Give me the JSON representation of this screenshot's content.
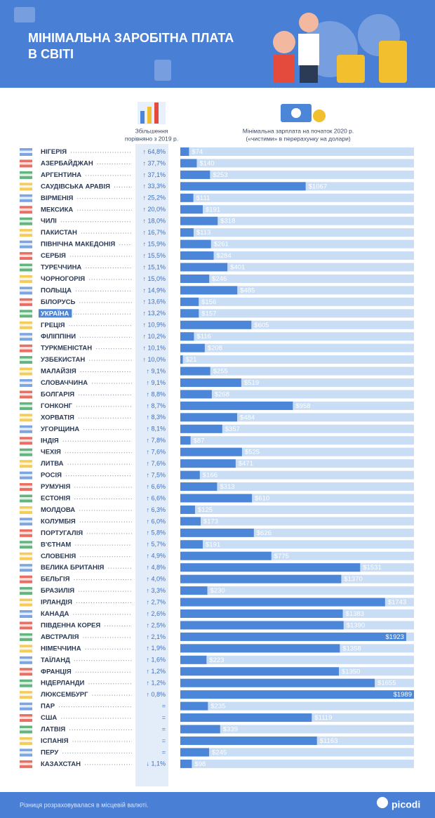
{
  "chart_data": {
    "type": "bar",
    "title": [
      "МІНІМАЛЬНА ЗАРОБІТНА ПЛАТА",
      "В СВІТІ"
    ],
    "growth_header": [
      "Збільшення",
      "порівняно з 2019 р."
    ],
    "value_header": [
      "Мінімальна зарплата на початок 2020 р.",
      "(«чистими» в перерахунку на долари)"
    ],
    "categories": [
      "НІГЕРІЯ",
      "АЗЕРБАЙДЖАН",
      "АРГЕНТИНА",
      "САУДІВСЬКА АРАВІЯ",
      "ВІРМЕНІЯ",
      "МЕКСИКА",
      "ЧИЛІ",
      "ПАКИСТАН",
      "ПІВНІЧНА МАКЕДОНІЯ",
      "СЕРБІЯ",
      "ТУРЕЧЧИНА",
      "ЧОРНОГОРІЯ",
      "ПОЛЬЩА",
      "БІЛОРУСЬ",
      "УКРАЇНА",
      "ГРЕЦІЯ",
      "ФІЛІППІНИ",
      "ТУРКМЕНІСТАН",
      "УЗБЕКИСТАН",
      "МАЛАЙЗІЯ",
      "СЛОВАЧЧИНА",
      "БОЛГАРІЯ",
      "ГОНКОНГ",
      "ХОРВАТІЯ",
      "УГОРЩИНА",
      "ІНДІЯ",
      "ЧЕХІЯ",
      "ЛИТВА",
      "РОСІЯ",
      "РУМУНІЯ",
      "ЕСТОНІЯ",
      "МОЛДОВА",
      "КОЛУМБІЯ",
      "ПОРТУГАЛІЯ",
      "В'ЄТНАМ",
      "СЛОВЕНІЯ",
      "ВЕЛИКА БРИТАНІЯ",
      "БЕЛЬГІЯ",
      "БРАЗИЛІЯ",
      "ІРЛАНДІЯ",
      "КАНАДА",
      "ПІВДЕННА КОРЕЯ",
      "АВСТРАЛІЯ",
      "НІМЕЧЧИНА",
      "ТАЇЛАНД",
      "ФРАНЦІЯ",
      "НІДЕРЛАНДИ",
      "ЛЮКСЕМБУРГ",
      "ПАР",
      "США",
      "ЛАТВІЯ",
      "ІСПАНІЯ",
      "ПЕРУ",
      "КАЗАХСТАН"
    ],
    "growth": [
      "↑ 64,8%",
      "↑ 37,7%",
      "↑ 37,1%",
      "↑ 33,3%",
      "↑ 25,2%",
      "↑ 20,0%",
      "↑ 18,0%",
      "↑ 16,7%",
      "↑ 15,9%",
      "↑ 15,5%",
      "↑ 15,1%",
      "↑ 15,0%",
      "↑ 14,9%",
      "↑ 13,6%",
      "↑ 13,2%",
      "↑ 10,9%",
      "↑ 10,2%",
      "↑ 10,1%",
      "↑ 10,0%",
      "↑ 9,1%",
      "↑ 9,1%",
      "↑ 8,8%",
      "↑ 8,7%",
      "↑ 8,3%",
      "↑ 8,1%",
      "↑ 7,8%",
      "↑ 7,6%",
      "↑ 7,6%",
      "↑ 7,5%",
      "↑ 6,6%",
      "↑ 6,6%",
      "↑ 6,3%",
      "↑ 6,0%",
      "↑ 5,8%",
      "↑ 5,7%",
      "↑ 4,9%",
      "↑ 4,8%",
      "↑ 4,0%",
      "↑ 3,3%",
      "↑ 2,7%",
      "↑ 2,6%",
      "↑ 2,5%",
      "↑ 2,1%",
      "↑ 1,9%",
      "↑ 1,6%",
      "↑ 1,2%",
      "↑ 1,2%",
      "↑ 0,8%",
      "=",
      "=",
      "=",
      "=",
      "=",
      "↓ 1,1%"
    ],
    "values": [
      74,
      140,
      253,
      1067,
      111,
      191,
      318,
      113,
      261,
      284,
      401,
      246,
      485,
      156,
      157,
      605,
      116,
      208,
      21,
      255,
      519,
      268,
      958,
      484,
      357,
      87,
      525,
      471,
      166,
      313,
      610,
      125,
      173,
      626,
      191,
      775,
      1531,
      1370,
      230,
      1743,
      1383,
      1390,
      1923,
      1358,
      223,
      1350,
      1655,
      1989,
      235,
      1119,
      339,
      1163,
      245,
      98
    ],
    "value_labels": [
      "$74",
      "$140",
      "$253",
      "$1067",
      "$111",
      "$191",
      "$318",
      "$113",
      "$261",
      "$284",
      "$401",
      "$246",
      "$485",
      "$156",
      "$157",
      "$605",
      "$116",
      "$208",
      "$21",
      "$255",
      "$519",
      "$268",
      "$958",
      "$484",
      "$357",
      "$87",
      "$525",
      "$471",
      "$166",
      "$313",
      "$610",
      "$125",
      "$173",
      "$626",
      "$191",
      "$775",
      "$1531",
      "$1370",
      "$230",
      "$1743",
      "$1383",
      "$1390",
      "$1923",
      "$1358",
      "$223",
      "$1350",
      "$1655",
      "$1989",
      "$235",
      "$1119",
      "$339",
      "$1163",
      "$245",
      "$98"
    ],
    "color": "#4b86d9",
    "track_color": "#c9ddf5",
    "highlight_index": 14
  },
  "footer": {
    "note": "Різниця розраховувалася в місцевій валюті.",
    "logo": "picodi"
  }
}
